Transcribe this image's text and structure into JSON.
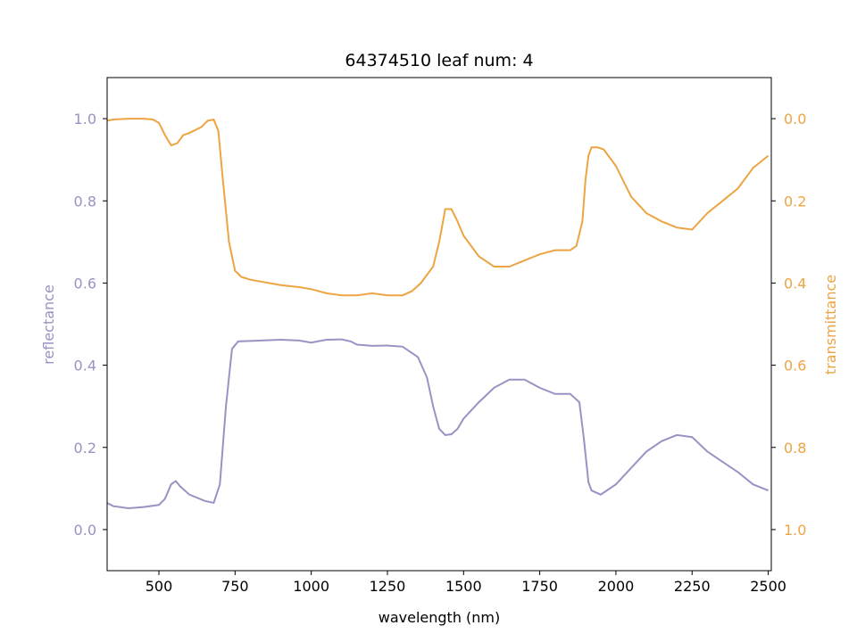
{
  "chart_data": {
    "type": "line",
    "title": "64374510 leaf num: 4",
    "xlabel": "wavelength (nm)",
    "ylabel_left": "reflectance",
    "ylabel_right": "transmittance",
    "xlim": [
      330,
      2510
    ],
    "ylim_left": [
      -0.1,
      1.1
    ],
    "ylim_right": [
      1.1,
      -0.1
    ],
    "x_ticks": [
      500,
      750,
      1000,
      1250,
      1500,
      1750,
      2000,
      2250,
      2500
    ],
    "x_tick_labels": [
      "500",
      "750",
      "1000",
      "1250",
      "1500",
      "1750",
      "2000",
      "2250",
      "2500"
    ],
    "y_left_ticks": [
      0.0,
      0.2,
      0.4,
      0.6,
      0.8,
      1.0
    ],
    "y_left_tick_labels": [
      "0.0",
      "0.2",
      "0.4",
      "0.6",
      "0.8",
      "1.0"
    ],
    "y_right_ticks": [
      0.0,
      0.2,
      0.4,
      0.6,
      0.8,
      1.0
    ],
    "y_right_tick_labels": [
      "0.0",
      "0.2",
      "0.4",
      "0.6",
      "0.8",
      "1.0"
    ],
    "grid": false,
    "colors": {
      "reflectance": "#9893c3",
      "transmittance": "#eda443",
      "axes": "#000000"
    },
    "series": [
      {
        "axis": "left",
        "x": [
          330,
          350,
          400,
          450,
          500,
          520,
          540,
          555,
          570,
          600,
          650,
          680,
          700,
          720,
          740,
          760,
          800,
          900,
          960,
          1000,
          1050,
          1100,
          1130,
          1150,
          1200,
          1250,
          1300,
          1350,
          1380,
          1400,
          1420,
          1440,
          1460,
          1480,
          1500,
          1550,
          1600,
          1650,
          1700,
          1750,
          1800,
          1850,
          1880,
          1895,
          1910,
          1920,
          1950,
          2000,
          2050,
          2100,
          2150,
          2200,
          2250,
          2300,
          2350,
          2400,
          2450,
          2500
        ],
        "y": [
          0.065,
          0.057,
          0.052,
          0.055,
          0.06,
          0.075,
          0.11,
          0.118,
          0.105,
          0.085,
          0.07,
          0.065,
          0.11,
          0.3,
          0.44,
          0.458,
          0.459,
          0.462,
          0.46,
          0.455,
          0.462,
          0.463,
          0.458,
          0.45,
          0.447,
          0.448,
          0.445,
          0.42,
          0.37,
          0.3,
          0.245,
          0.23,
          0.232,
          0.245,
          0.27,
          0.31,
          0.345,
          0.365,
          0.365,
          0.345,
          0.33,
          0.33,
          0.31,
          0.22,
          0.115,
          0.095,
          0.085,
          0.11,
          0.15,
          0.19,
          0.215,
          0.23,
          0.225,
          0.19,
          0.165,
          0.14,
          0.11,
          0.095
        ]
      },
      {
        "axis": "right",
        "x": [
          330,
          350,
          400,
          450,
          480,
          500,
          520,
          540,
          560,
          580,
          600,
          640,
          660,
          680,
          695,
          710,
          730,
          750,
          770,
          800,
          900,
          960,
          1000,
          1050,
          1100,
          1150,
          1200,
          1250,
          1300,
          1330,
          1360,
          1400,
          1420,
          1440,
          1460,
          1480,
          1500,
          1550,
          1600,
          1650,
          1700,
          1750,
          1800,
          1850,
          1870,
          1890,
          1900,
          1910,
          1920,
          1940,
          1960,
          2000,
          2050,
          2100,
          2150,
          2200,
          2250,
          2300,
          2350,
          2400,
          2450,
          2500
        ],
        "y": [
          0.005,
          0.002,
          0.0,
          0.0,
          0.002,
          0.01,
          0.04,
          0.065,
          0.06,
          0.04,
          0.035,
          0.02,
          0.005,
          0.002,
          0.03,
          0.15,
          0.3,
          0.37,
          0.385,
          0.392,
          0.405,
          0.41,
          0.415,
          0.425,
          0.43,
          0.43,
          0.425,
          0.43,
          0.43,
          0.42,
          0.4,
          0.36,
          0.3,
          0.22,
          0.22,
          0.25,
          0.285,
          0.335,
          0.36,
          0.36,
          0.345,
          0.33,
          0.32,
          0.32,
          0.31,
          0.25,
          0.15,
          0.09,
          0.07,
          0.07,
          0.075,
          0.115,
          0.19,
          0.23,
          0.25,
          0.265,
          0.27,
          0.23,
          0.2,
          0.17,
          0.12,
          0.09
        ]
      }
    ]
  }
}
